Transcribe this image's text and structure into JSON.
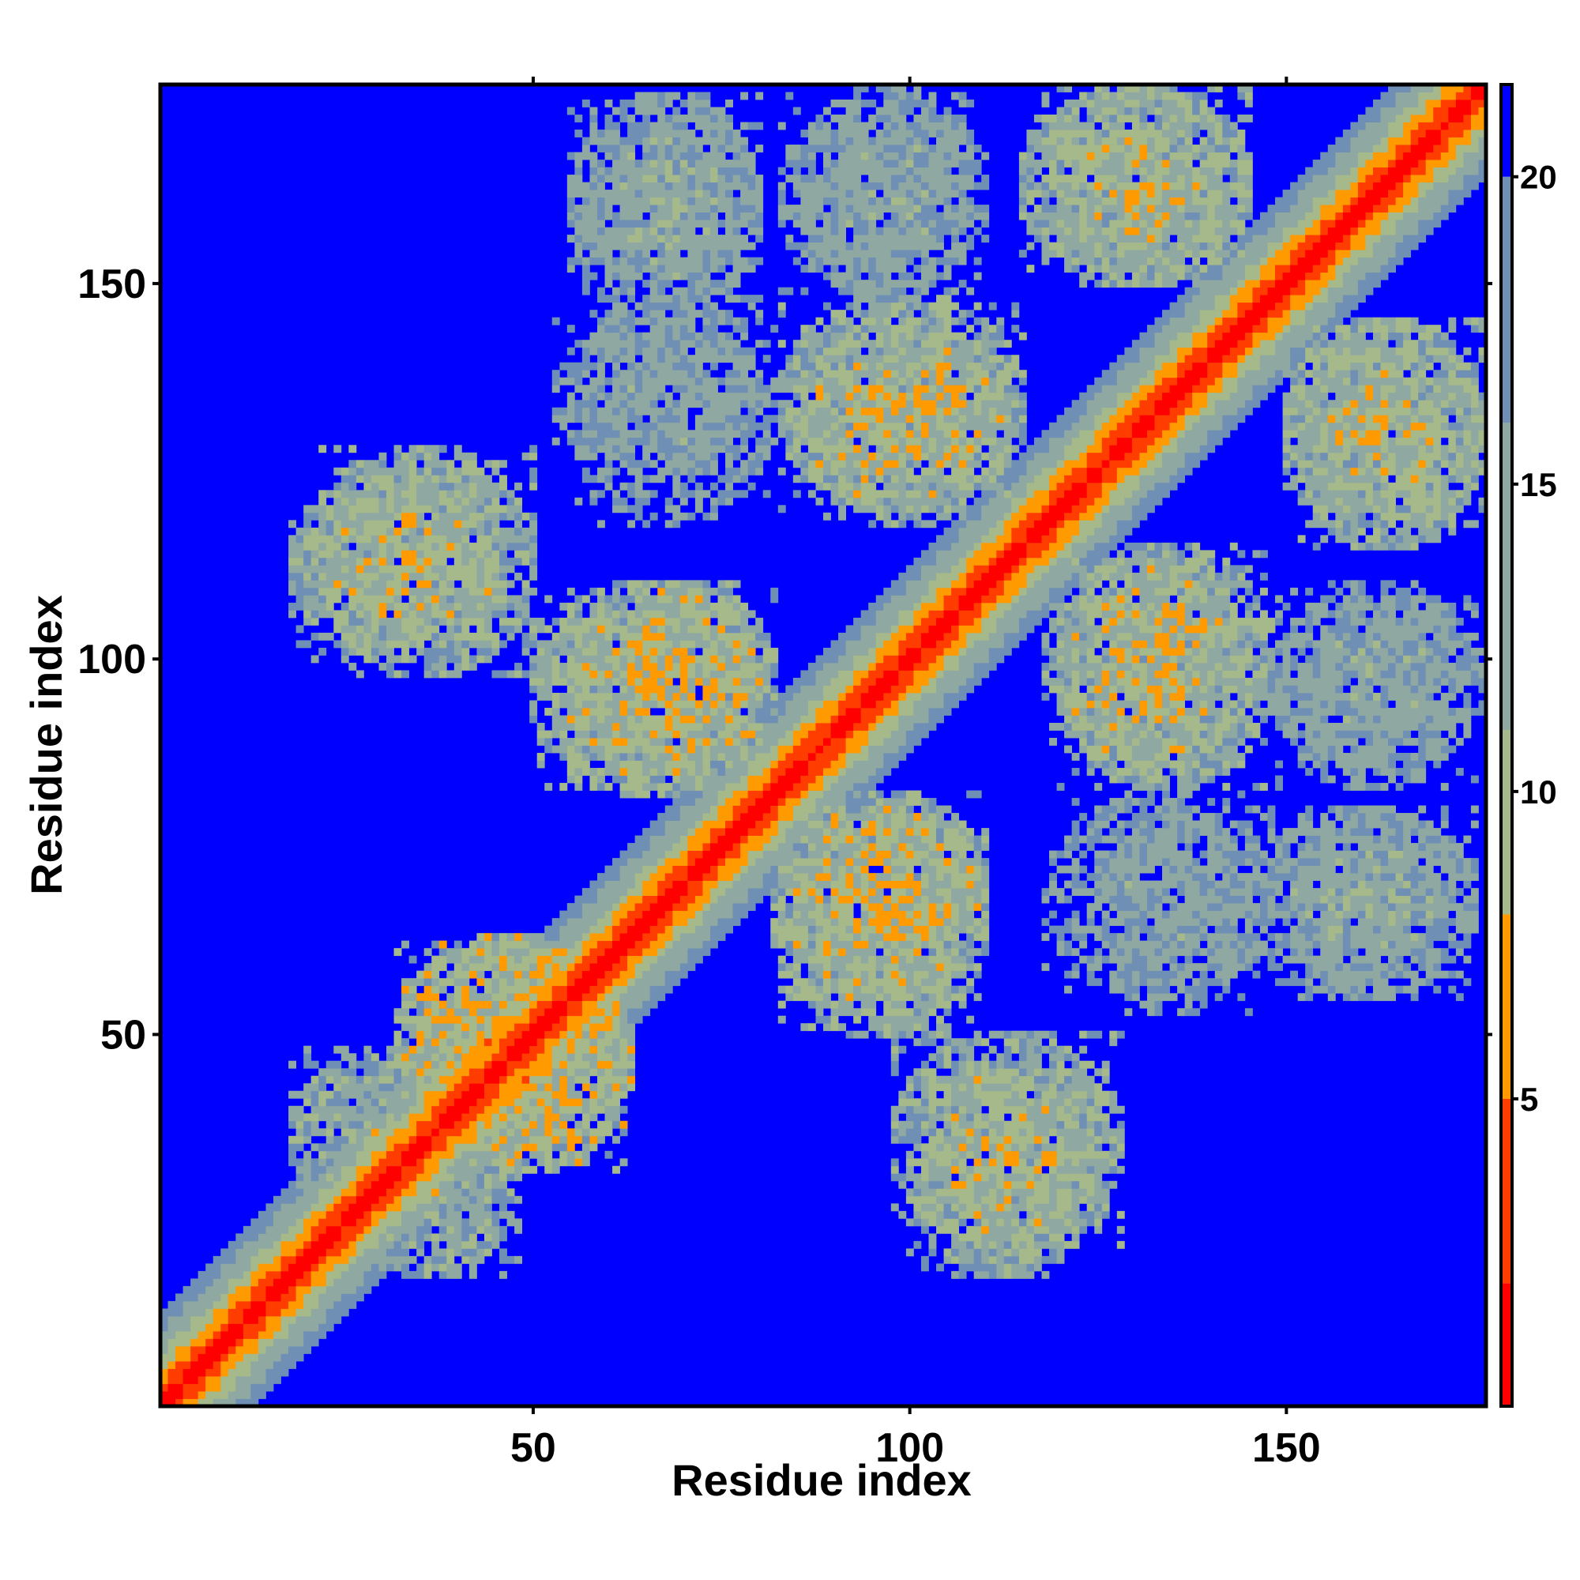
{
  "chart_data": {
    "type": "heatmap",
    "title": "",
    "xlabel": "Residue index",
    "ylabel": "Residue index",
    "xlim": [
      1,
      176
    ],
    "ylim": [
      1,
      176
    ],
    "x_ticks": [
      50,
      100,
      150
    ],
    "y_ticks": [
      50,
      100,
      150
    ],
    "x_tick_labels": [
      "50",
      "100",
      "150"
    ],
    "y_tick_labels": [
      "50",
      "100",
      "150"
    ],
    "colorbar": {
      "range": [
        0,
        21.5
      ],
      "ticks": [
        5,
        10,
        15,
        20
      ],
      "tick_labels": [
        "5",
        "10",
        "15",
        "20"
      ],
      "colors": [
        {
          "max": 2,
          "color": "#ff0000"
        },
        {
          "max": 5,
          "color": "#ff3d00"
        },
        {
          "max": 8,
          "color": "#ff9a00"
        },
        {
          "max": 11,
          "color": "#a6b98a"
        },
        {
          "max": 16,
          "color": "#8fa8a2"
        },
        {
          "max": 20,
          "color": "#6f8fb4"
        },
        {
          "max": 100,
          "color": "#0000ff"
        }
      ]
    },
    "matrix_description_values": {
      "n_residues": 176,
      "cutoff": 20,
      "diagonal_band_halfwidth": 12,
      "contact_blocks": [
        {
          "x": [
            55,
            80
          ],
          "y": [
            145,
            175
          ],
          "dist": 14
        },
        {
          "x": [
            83,
            110
          ],
          "y": [
            148,
            175
          ],
          "dist": 15
        },
        {
          "x": [
            118,
            145
          ],
          "y": [
            150,
            176
          ],
          "dist": 11
        },
        {
          "x": [
            53,
            80
          ],
          "y": [
            125,
            145
          ],
          "dist": 15
        },
        {
          "x": [
            83,
            115
          ],
          "y": [
            120,
            148
          ],
          "dist": 11
        },
        {
          "x": [
            150,
            176
          ],
          "y": [
            115,
            145
          ],
          "dist": 11
        },
        {
          "x": [
            18,
            46
          ],
          "y": [
            100,
            125
          ],
          "dist": 11
        },
        {
          "x": [
            50,
            80
          ],
          "y": [
            82,
            110
          ],
          "dist": 10
        },
        {
          "x": [
            118,
            145
          ],
          "y": [
            85,
            113
          ],
          "dist": 10
        },
        {
          "x": [
            148,
            176
          ],
          "y": [
            85,
            108
          ],
          "dist": 14
        },
        {
          "x": [
            83,
            110
          ],
          "y": [
            55,
            82
          ],
          "dist": 10
        },
        {
          "x": [
            118,
            148
          ],
          "y": [
            55,
            82
          ],
          "dist": 15
        },
        {
          "x": [
            150,
            175
          ],
          "y": [
            55,
            80
          ],
          "dist": 14
        },
        {
          "x": [
            32,
            62
          ],
          "y": [
            35,
            63
          ],
          "dist": 9
        },
        {
          "x": [
            18,
            46
          ],
          "y": [
            25,
            48
          ],
          "dist": 12
        },
        {
          "x": [
            98,
            128
          ],
          "y": [
            22,
            50
          ],
          "dist": 11
        }
      ]
    }
  }
}
